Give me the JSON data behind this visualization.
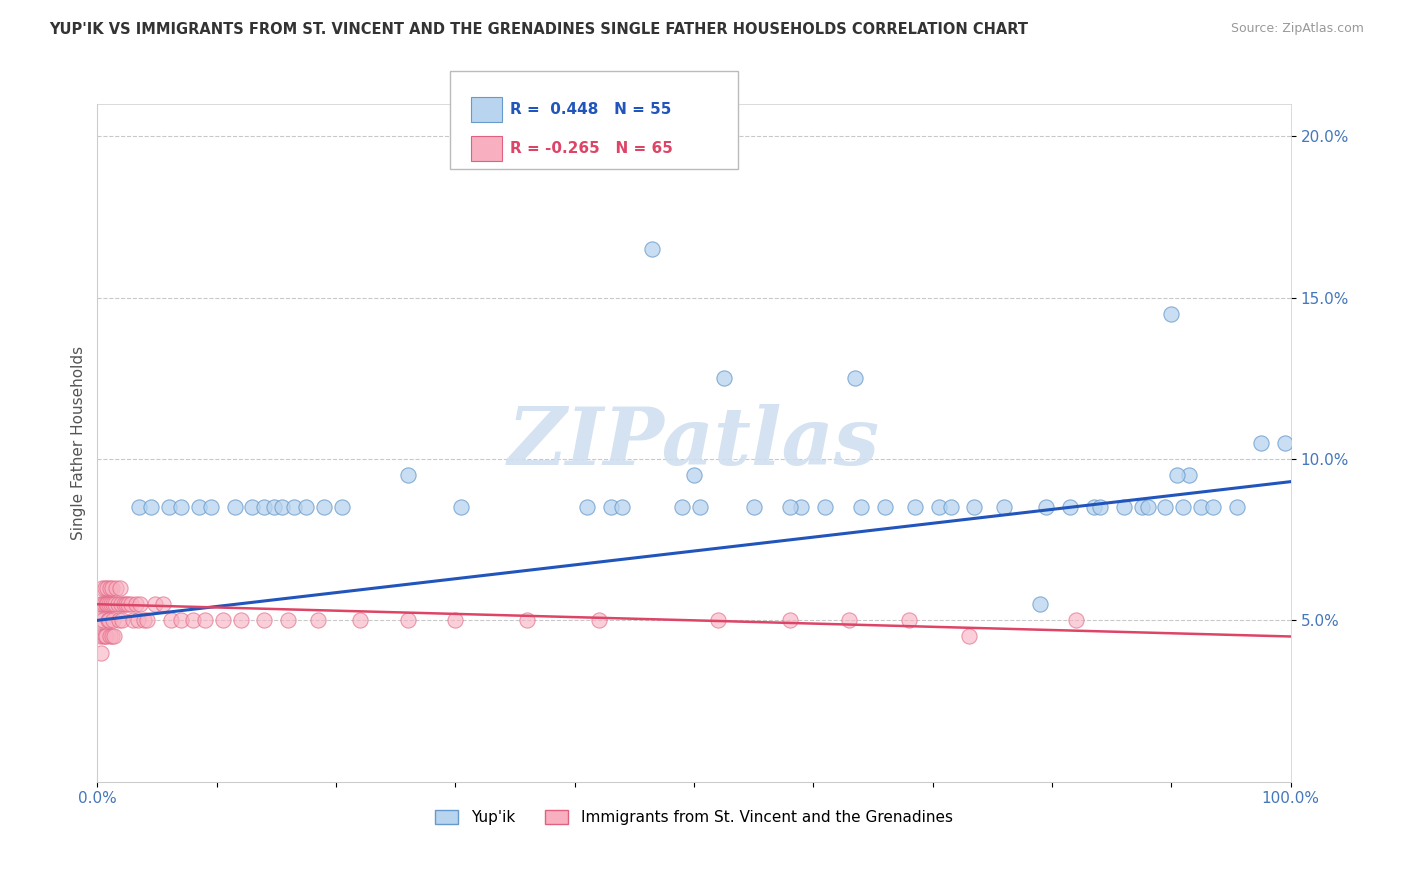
{
  "title": "YUP'IK VS IMMIGRANTS FROM ST. VINCENT AND THE GRENADINES SINGLE FATHER HOUSEHOLDS CORRELATION CHART",
  "source": "Source: ZipAtlas.com",
  "ylabel": "Single Father Households",
  "bg_color": "#ffffff",
  "grid_color": "#bbbbbb",
  "series1_color": "#b8d4ee",
  "series1_edge_color": "#6699cc",
  "series2_color": "#f8b0c0",
  "series2_edge_color": "#e06080",
  "line1_color": "#2255bb",
  "line2_color": "#dd4466",
  "R1": 0.448,
  "N1": 55,
  "R2": -0.265,
  "N2": 65,
  "xlim": [
    0,
    100
  ],
  "ylim": [
    0,
    21
  ],
  "xticks": [
    0,
    10,
    20,
    30,
    40,
    50,
    60,
    70,
    80,
    90,
    100
  ],
  "yticks": [
    5,
    10,
    15,
    20
  ],
  "watermark_color": "#d0dff0",
  "series1_x": [
    3.5,
    4.5,
    6.0,
    7.0,
    8.5,
    9.5,
    11.5,
    13.0,
    14.0,
    14.8,
    15.5,
    16.5,
    17.5,
    19.0,
    20.5,
    26.0,
    30.5,
    41.0,
    43.0,
    44.0,
    46.5,
    49.0,
    50.5,
    52.5,
    55.0,
    59.0,
    61.0,
    63.5,
    66.0,
    68.5,
    70.5,
    71.5,
    73.5,
    76.0,
    79.5,
    81.5,
    83.5,
    84.0,
    86.0,
    87.5,
    89.5,
    90.0,
    91.0,
    91.5,
    92.5,
    93.5,
    95.5,
    97.5,
    99.5,
    50.0,
    58.0,
    64.0,
    79.0,
    88.0,
    90.5
  ],
  "series1_y": [
    8.5,
    8.5,
    8.5,
    8.5,
    8.5,
    8.5,
    8.5,
    8.5,
    8.5,
    8.5,
    8.5,
    8.5,
    8.5,
    8.5,
    8.5,
    9.5,
    8.5,
    8.5,
    8.5,
    8.5,
    16.5,
    8.5,
    8.5,
    12.5,
    8.5,
    8.5,
    8.5,
    12.5,
    8.5,
    8.5,
    8.5,
    8.5,
    8.5,
    8.5,
    8.5,
    8.5,
    8.5,
    8.5,
    8.5,
    8.5,
    8.5,
    14.5,
    8.5,
    9.5,
    8.5,
    8.5,
    8.5,
    10.5,
    10.5,
    9.5,
    8.5,
    8.5,
    5.5,
    8.5,
    9.5
  ],
  "series2_x": [
    0.15,
    0.2,
    0.25,
    0.3,
    0.35,
    0.4,
    0.45,
    0.5,
    0.55,
    0.6,
    0.65,
    0.7,
    0.75,
    0.8,
    0.85,
    0.9,
    0.95,
    1.0,
    1.05,
    1.1,
    1.15,
    1.2,
    1.25,
    1.3,
    1.35,
    1.4,
    1.5,
    1.6,
    1.7,
    1.8,
    1.9,
    2.0,
    2.1,
    2.2,
    2.4,
    2.6,
    2.8,
    3.0,
    3.2,
    3.4,
    3.6,
    3.9,
    4.2,
    4.8,
    5.5,
    6.2,
    7.0,
    8.0,
    9.0,
    10.5,
    12.0,
    14.0,
    16.0,
    18.5,
    22.0,
    26.0,
    30.0,
    36.0,
    42.0,
    52.0,
    58.0,
    63.0,
    68.0,
    73.0,
    82.0
  ],
  "series2_y": [
    5.0,
    4.5,
    5.5,
    4.0,
    5.5,
    6.0,
    4.5,
    5.0,
    5.5,
    4.5,
    6.0,
    5.5,
    4.5,
    5.5,
    6.0,
    5.0,
    5.5,
    5.0,
    4.5,
    6.0,
    5.5,
    4.5,
    6.0,
    5.5,
    5.0,
    4.5,
    5.5,
    6.0,
    5.5,
    5.0,
    6.0,
    5.5,
    5.0,
    5.5,
    5.5,
    5.5,
    5.5,
    5.0,
    5.5,
    5.0,
    5.5,
    5.0,
    5.0,
    5.5,
    5.5,
    5.0,
    5.0,
    5.0,
    5.0,
    5.0,
    5.0,
    5.0,
    5.0,
    5.0,
    5.0,
    5.0,
    5.0,
    5.0,
    5.0,
    5.0,
    5.0,
    5.0,
    5.0,
    4.5,
    5.0
  ],
  "line1_x0": 0,
  "line1_y0": 5.0,
  "line1_x1": 100,
  "line1_y1": 9.3,
  "line2_x0": 0,
  "line2_y0": 5.5,
  "line2_x1": 100,
  "line2_y1": 4.5
}
